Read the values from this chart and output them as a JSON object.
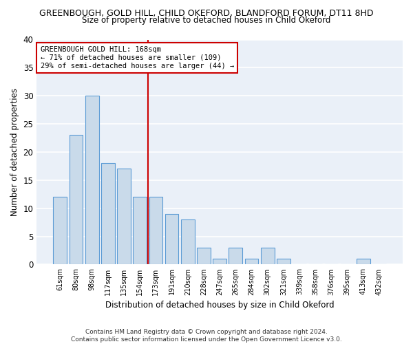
{
  "title": "GREENBOUGH, GOLD HILL, CHILD OKEFORD, BLANDFORD FORUM, DT11 8HD",
  "subtitle": "Size of property relative to detached houses in Child Okeford",
  "xlabel": "Distribution of detached houses by size in Child Okeford",
  "ylabel": "Number of detached properties",
  "footer1": "Contains HM Land Registry data © Crown copyright and database right 2024.",
  "footer2": "Contains public sector information licensed under the Open Government Licence v3.0.",
  "categories": [
    "61sqm",
    "80sqm",
    "98sqm",
    "117sqm",
    "135sqm",
    "154sqm",
    "173sqm",
    "191sqm",
    "210sqm",
    "228sqm",
    "247sqm",
    "265sqm",
    "284sqm",
    "302sqm",
    "321sqm",
    "339sqm",
    "358sqm",
    "376sqm",
    "395sqm",
    "413sqm",
    "432sqm"
  ],
  "values": [
    12,
    23,
    30,
    18,
    17,
    12,
    12,
    9,
    8,
    3,
    1,
    3,
    1,
    3,
    1,
    0,
    0,
    0,
    0,
    1,
    0
  ],
  "bar_color": "#c9daea",
  "bar_edge_color": "#5b9bd5",
  "highlight_label": "GREENBOUGH GOLD HILL: 168sqm\n← 71% of detached houses are smaller (109)\n29% of semi-detached houses are larger (44) →",
  "vline_color": "#cc0000",
  "ylim": [
    0,
    40
  ],
  "yticks": [
    0,
    5,
    10,
    15,
    20,
    25,
    30,
    35,
    40
  ],
  "bg_color": "#eaf0f8",
  "grid_color": "#ffffff",
  "annotation_box_edge": "#cc0000"
}
